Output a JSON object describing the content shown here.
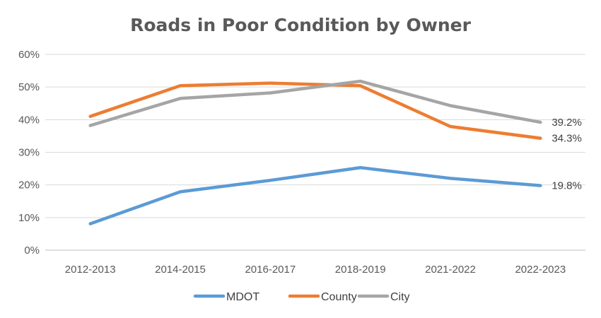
{
  "chart_data": {
    "type": "line",
    "title": "Roads in Poor Condition by Owner",
    "xlabel": "",
    "ylabel": "",
    "categories": [
      "2012-2013",
      "2014-2015",
      "2016-2017",
      "2018-2019",
      "2021-2022",
      "2022-2023"
    ],
    "y_ticks": [
      "0%",
      "10%",
      "20%",
      "30%",
      "40%",
      "50%",
      "60%"
    ],
    "ylim": [
      0,
      60
    ],
    "grid": true,
    "legend_position": "bottom",
    "series": [
      {
        "name": "MDOT",
        "color": "#5B9BD5",
        "values": [
          8.1,
          17.9,
          21.4,
          25.3,
          22.0,
          19.8
        ],
        "end_label": "19.8%"
      },
      {
        "name": "County",
        "color": "#ED7D31",
        "values": [
          41.0,
          50.4,
          51.2,
          50.4,
          37.9,
          34.3
        ],
        "end_label": "34.3%"
      },
      {
        "name": "City",
        "color": "#A5A5A5",
        "values": [
          38.2,
          46.5,
          48.2,
          51.8,
          44.3,
          39.2
        ],
        "end_label": "39.2%"
      }
    ]
  }
}
